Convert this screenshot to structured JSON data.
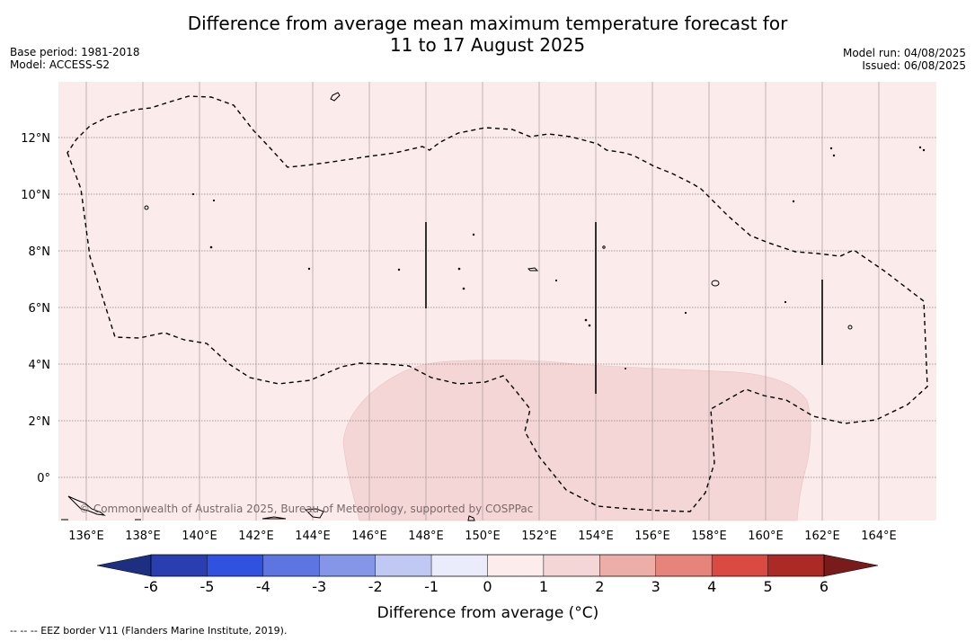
{
  "title": {
    "line1": "Difference from average mean maximum temperature forecast for",
    "line2": "11 to 17 August 2025"
  },
  "meta": {
    "base_period": "Base period: 1981-2018",
    "model": "Model: ACCESS-S2",
    "model_run": "Model run: 04/08/2025",
    "issued": "Issued: 06/08/2025"
  },
  "map": {
    "x_ticks": [
      "136°E",
      "138°E",
      "140°E",
      "142°E",
      "144°E",
      "146°E",
      "148°E",
      "150°E",
      "152°E",
      "154°E",
      "156°E",
      "158°E",
      "160°E",
      "162°E",
      "164°E"
    ],
    "y_ticks": [
      "12°N",
      "10°N",
      "8°N",
      "6°N",
      "4°N",
      "2°N",
      "0°"
    ],
    "copyright": "© Commonwealth of Australia 2025, Bureau of Meteorology, supported by COSPPac",
    "background_anomaly_range": "0 to 1",
    "southern_region_anomaly_range": "1 to 2"
  },
  "colorbar": {
    "ticks": [
      "-6",
      "-5",
      "-4",
      "-3",
      "-2",
      "-1",
      "0",
      "1",
      "2",
      "3",
      "4",
      "5",
      "6"
    ],
    "colors": [
      "#2a3eb1",
      "#3152e0",
      "#5c75e0",
      "#8596e8",
      "#c0c8f4",
      "#eaecfc",
      "#fcecec",
      "#f5d6d6",
      "#eeaea8",
      "#e6847c",
      "#da4a42",
      "#ab2a26"
    ],
    "low_extend_color": "#1c2f80",
    "high_extend_color": "#7a1b1b",
    "label": "Difference from average (°C)"
  },
  "footer": {
    "legend": "--  --  -- EEZ border V11 (Flanders Marine Institute, 2019)."
  }
}
